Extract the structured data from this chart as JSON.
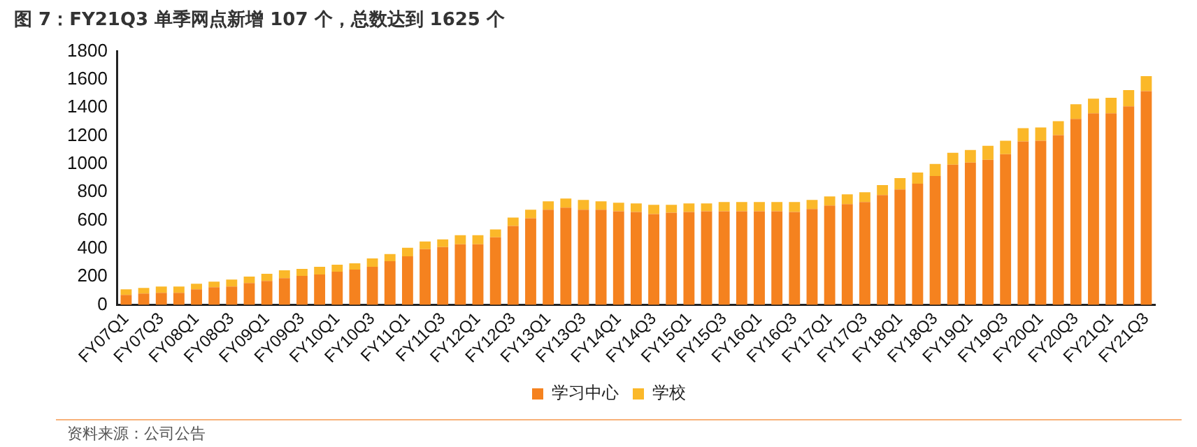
{
  "chart_data": {
    "type": "bar",
    "title": "图 7：FY21Q3 单季网点新增 107 个，总数达到 1625 个",
    "stacked": true,
    "legend": "bottom",
    "grid": false,
    "categories": [
      "FY07Q1",
      null,
      "FY07Q3",
      null,
      "FY08Q1",
      null,
      "FY08Q3",
      null,
      "FY09Q1",
      null,
      "FY09Q3",
      null,
      "FY10Q1",
      null,
      "FY10Q3",
      null,
      "FY11Q1",
      null,
      "FY11Q3",
      null,
      "FY12Q1",
      null,
      "FY12Q3",
      null,
      "FY13Q1",
      null,
      "FY13Q3",
      null,
      "FY14Q1",
      null,
      "FY14Q3",
      null,
      "FY15Q1",
      null,
      "FY15Q3",
      null,
      "FY16Q1",
      null,
      "FY16Q3",
      null,
      "FY17Q1",
      null,
      "FY17Q3",
      null,
      "FY18Q1",
      null,
      "FY18Q3",
      null,
      "FY19Q1",
      null,
      "FY19Q3",
      null,
      "FY20Q1",
      null,
      "FY20Q3",
      null,
      "FY21Q1",
      null,
      "FY21Q3"
    ],
    "series": [
      {
        "name": "学习中心",
        "color": "#f5821f",
        "values": [
          70,
          80,
          85,
          85,
          110,
          125,
          130,
          155,
          170,
          190,
          205,
          215,
          235,
          250,
          270,
          310,
          345,
          395,
          410,
          430,
          430,
          480,
          560,
          615,
          675,
          690,
          675,
          675,
          665,
          660,
          645,
          655,
          660,
          665,
          665,
          665,
          665,
          665,
          660,
          680,
          705,
          715,
          730,
          780,
          820,
          860,
          915,
          995,
          1010,
          1030,
          1070,
          1160,
          1165,
          1205,
          1320,
          1360,
          1360,
          1410,
          1518
        ]
      },
      {
        "name": "学校",
        "color": "#fbb829",
        "values": [
          40,
          40,
          45,
          45,
          40,
          40,
          50,
          45,
          50,
          55,
          50,
          55,
          50,
          45,
          60,
          50,
          60,
          55,
          55,
          65,
          65,
          55,
          60,
          60,
          60,
          65,
          70,
          60,
          60,
          60,
          65,
          55,
          60,
          55,
          65,
          65,
          65,
          65,
          70,
          65,
          65,
          70,
          70,
          70,
          80,
          80,
          85,
          85,
          90,
          100,
          95,
          95,
          95,
          100,
          105,
          105,
          110,
          115,
          107
        ]
      }
    ],
    "ylim": [
      0,
      1800
    ],
    "yticks": [
      0,
      200,
      400,
      600,
      800,
      1000,
      1200,
      1400,
      1600,
      1800
    ],
    "annotations": [
      "资料来源：公司公告"
    ]
  }
}
